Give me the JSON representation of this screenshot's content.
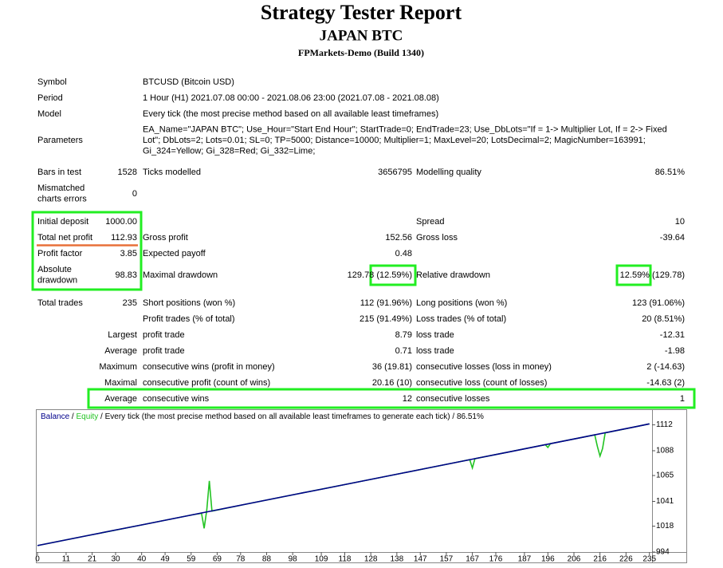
{
  "header": {
    "title": "Strategy Tester Report",
    "subtitle": "JAPAN BTC",
    "broker": "FPMarkets-Demo (Build 1340)"
  },
  "rows": [
    [
      "Symbol",
      null,
      "BTCUSD (Bitcoin USD)"
    ],
    [
      "Period",
      null,
      "1 Hour (H1) 2021.07.08 00:00 - 2021.08.06 23:00 (2021.07.08 - 2021.08.08)"
    ],
    [
      "Model",
      null,
      "Every tick (the most precise method based on all available least timeframes)"
    ],
    [
      "Parameters",
      null,
      [
        "EA_Name=\"JAPAN BTC\"; Use_Hour=\"Start End Hour\"; StartTrade=0; EndTrade=23; Use_DbLots=\"If = 1-> Multiplier Lot, If = 2-> Fixed",
        "Lot\"; DbLots=2; Lots=0.01; SL=0; TP=5000; Distance=10000; Multiplier=1; MaxLevel=20; LotsDecimal=2; MagicNumber=163991;",
        "Gi_324=Yellow; Gi_328=Red; Gi_332=Lime;"
      ]
    ],
    [
      "Bars in test",
      "1528",
      "Ticks modelled",
      "3656795",
      "Modelling quality",
      "86.51%"
    ],
    [
      [
        "Mismatched",
        "charts errors"
      ],
      "0"
    ],
    [
      "Initial deposit",
      "1000.00",
      null,
      null,
      "Spread",
      "10"
    ],
    [
      "Total net profit",
      "112.93",
      "Gross profit",
      "152.56",
      "Gross loss",
      "-39.64"
    ],
    [
      "Profit factor",
      "3.85",
      "Expected payoff",
      "0.48"
    ],
    [
      [
        "Absolute",
        "drawdown"
      ],
      "98.83",
      "Maximal drawdown",
      "129.78 (12.59%)",
      "Relative drawdown",
      "12.59% (129.78)"
    ],
    [
      "Total trades",
      "235",
      "Short positions (won %)",
      "112 (91.96%)",
      "Long positions (won %)",
      "123 (91.06%)"
    ],
    [
      null,
      null,
      "Profit trades (% of total)",
      "215 (91.49%)",
      "Loss trades (% of total)",
      "20 (8.51%)"
    ],
    [
      null,
      "Largest",
      "profit trade",
      "8.79",
      "loss trade",
      "-12.31"
    ],
    [
      null,
      "Average",
      "profit trade",
      "0.71",
      "loss trade",
      "-1.98"
    ],
    [
      null,
      "Maximum",
      "consecutive wins (profit in money)",
      "36 (19.81)",
      "consecutive losses (loss in money)",
      "2 (-14.63)"
    ],
    [
      null,
      "Maximal",
      "consecutive profit (count of wins)",
      "20.16 (10)",
      "consecutive loss (count of losses)",
      "-14.63 (2)"
    ],
    [
      null,
      "Average",
      "consecutive wins",
      "12",
      "consecutive losses",
      "1"
    ]
  ],
  "chart": {
    "type": "line",
    "header": {
      "separator": " / ",
      "description": "Every tick (the most precise method based on all available least timeframes to generate each tick)",
      "quality": "86.51%"
    },
    "series": [
      {
        "name": "Balance",
        "color": "#00008b",
        "x": [
          0,
          10,
          20,
          30,
          40,
          50,
          60,
          64,
          70,
          80,
          90,
          100,
          110,
          120,
          130,
          140,
          150,
          160,
          170,
          180,
          190,
          200,
          210,
          220,
          230,
          235
        ],
        "values": [
          1000,
          1004.8,
          1009.6,
          1014.4,
          1019.2,
          1024,
          1028.8,
          1030.7,
          1033.6,
          1038.4,
          1043.2,
          1048,
          1052.8,
          1057.6,
          1062.4,
          1067.2,
          1072,
          1076.8,
          1081.6,
          1086.4,
          1091.2,
          1096,
          1100.8,
          1105.6,
          1110.4,
          1112.93
        ]
      },
      {
        "name": "Equity",
        "color": "#22c322",
        "x": [
          0,
          20,
          40,
          60,
          63,
          64,
          65,
          66,
          67,
          80,
          100,
          120,
          140,
          160,
          166,
          167,
          168,
          180,
          195,
          196,
          197,
          210,
          214,
          215,
          216,
          217,
          218,
          230,
          235
        ],
        "values": [
          1000,
          1009.6,
          1019.2,
          1028.8,
          1030,
          1016,
          1033,
          1060,
          1032,
          1038.4,
          1048,
          1057.6,
          1067.2,
          1076.8,
          1079.7,
          1072,
          1080.6,
          1086.4,
          1093.6,
          1091,
          1094.6,
          1100.8,
          1102.7,
          1092,
          1083,
          1090,
          1104.6,
          1110.4,
          1112.93
        ]
      }
    ],
    "xlim": [
      0,
      236
    ],
    "xticks": [
      0,
      11,
      21,
      30,
      40,
      49,
      59,
      69,
      78,
      88,
      98,
      109,
      118,
      128,
      138,
      147,
      157,
      167,
      176,
      187,
      196,
      206,
      216,
      226,
      235
    ],
    "ylim": [
      994,
      1125
    ],
    "yticks": [
      994,
      1018,
      1041,
      1065,
      1088,
      1112
    ]
  }
}
